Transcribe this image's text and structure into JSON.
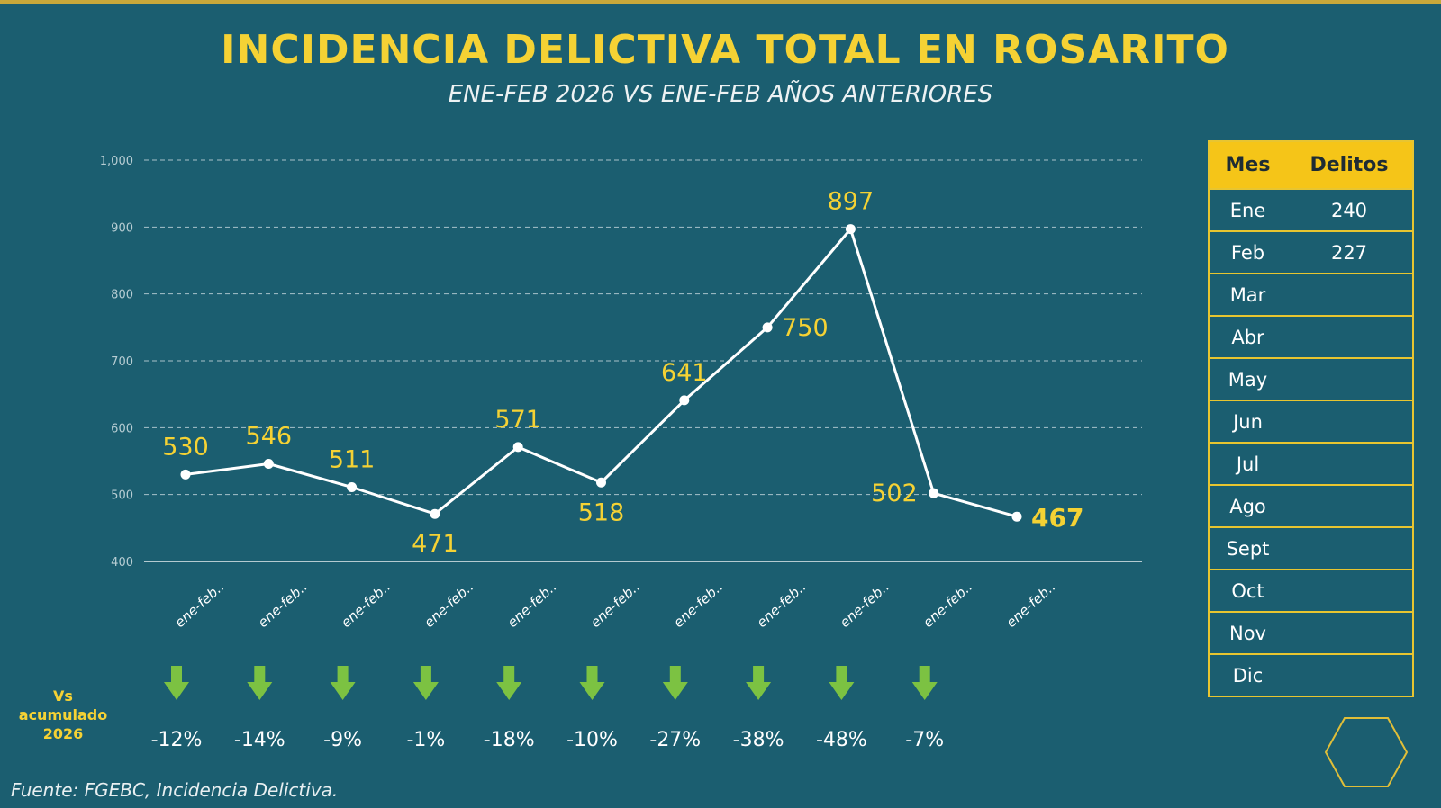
{
  "header": {
    "title": "INCIDENCIA DELICTIVA TOTAL EN ROSARITO",
    "subtitle": "ENE-FEB 2026 VS ENE-FEB AÑOS ANTERIORES"
  },
  "chart_data": {
    "type": "line",
    "ylim": [
      400,
      1000
    ],
    "yticks": [
      400,
      500,
      600,
      700,
      800,
      900,
      1000
    ],
    "ytick_labels": [
      "400",
      "500",
      "600",
      "700",
      "800",
      "900",
      "1,000"
    ],
    "grid": true,
    "categories": [
      "ene-feb..",
      "ene-feb..",
      "ene-feb..",
      "ene-feb..",
      "ene-feb..",
      "ene-feb..",
      "ene-feb..",
      "ene-feb..",
      "ene-feb..",
      "ene-feb..",
      "ene-feb.."
    ],
    "series": [
      {
        "values": [
          530,
          546,
          511,
          471,
          571,
          518,
          641,
          750,
          897,
          502,
          467
        ]
      }
    ],
    "data_labels": [
      "530",
      "546",
      "511",
      "471",
      "571",
      "518",
      "641",
      "750",
      "897",
      "502",
      "467"
    ],
    "comparison": {
      "label_line1": "Vs",
      "label_line2": "acumulado",
      "label_line3": "2026",
      "values": [
        "-12%",
        "-14%",
        "-9%",
        "-1%",
        "-18%",
        "-10%",
        "-27%",
        "-38%",
        "-48%",
        "-7%"
      ],
      "arrow_color": "#7cc242"
    }
  },
  "table": {
    "headers": {
      "month": "Mes",
      "value": "Delitos"
    },
    "rows": [
      {
        "month": "Ene",
        "value": "240"
      },
      {
        "month": "Feb",
        "value": "227"
      },
      {
        "month": "Mar",
        "value": ""
      },
      {
        "month": "Abr",
        "value": ""
      },
      {
        "month": "May",
        "value": ""
      },
      {
        "month": "Jun",
        "value": ""
      },
      {
        "month": "Jul",
        "value": ""
      },
      {
        "month": "Ago",
        "value": ""
      },
      {
        "month": "Sept",
        "value": ""
      },
      {
        "month": "Oct",
        "value": ""
      },
      {
        "month": "Nov",
        "value": ""
      },
      {
        "month": "Dic",
        "value": ""
      }
    ]
  },
  "footer": {
    "source": "Fuente: FGEBC, Incidencia Delictiva."
  },
  "colors": {
    "background": "#1b5e70",
    "accent": "#f5d234",
    "line": "#ffffff",
    "arrow": "#7cc242"
  }
}
